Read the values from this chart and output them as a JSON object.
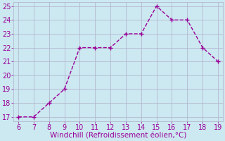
{
  "x": [
    6,
    7,
    8,
    9,
    10,
    11,
    12,
    13,
    14,
    15,
    16,
    17,
    18,
    19
  ],
  "y": [
    17,
    17,
    18,
    19,
    22,
    22,
    22,
    23,
    23,
    25,
    24,
    24,
    22,
    21
  ],
  "line_color": "#990099",
  "marker": "+",
  "marker_size": 4,
  "line_width": 1.0,
  "xlabel": "Windchill (Refroidissement éolien,°C)",
  "xlabel_color": "#990099",
  "xlabel_fontsize": 7.5,
  "xlim_min": 5.7,
  "xlim_max": 19.3,
  "ylim_min": 16.7,
  "ylim_max": 25.3,
  "xticks": [
    6,
    7,
    8,
    9,
    10,
    11,
    12,
    13,
    14,
    15,
    16,
    17,
    18,
    19
  ],
  "yticks": [
    17,
    18,
    19,
    20,
    21,
    22,
    23,
    24,
    25
  ],
  "tick_fontsize": 7,
  "tick_color": "#990099",
  "background_color": "#cce8f0",
  "grid_color": "#b0b0cc",
  "grid_linewidth": 0.5,
  "spine_color": "#b0b0cc"
}
